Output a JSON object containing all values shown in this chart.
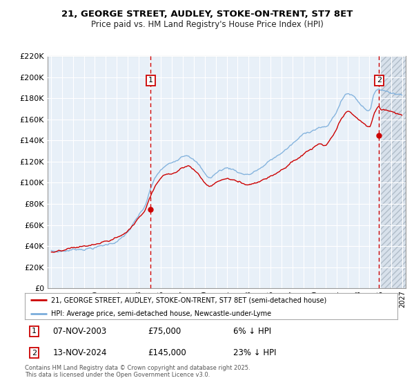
{
  "title": "21, GEORGE STREET, AUDLEY, STOKE-ON-TRENT, ST7 8ET",
  "subtitle": "Price paid vs. HM Land Registry's House Price Index (HPI)",
  "legend_line1": "21, GEORGE STREET, AUDLEY, STOKE-ON-TRENT, ST7 8ET (semi-detached house)",
  "legend_line2": "HPI: Average price, semi-detached house, Newcastle-under-Lyme",
  "annotation1_label": "1",
  "annotation1_date": "07-NOV-2003",
  "annotation1_price": "£75,000",
  "annotation1_hpi": "6% ↓ HPI",
  "annotation2_label": "2",
  "annotation2_date": "13-NOV-2024",
  "annotation2_price": "£145,000",
  "annotation2_hpi": "23% ↓ HPI",
  "footer": "Contains HM Land Registry data © Crown copyright and database right 2025.\nThis data is licensed under the Open Government Licence v3.0.",
  "red_color": "#cc0000",
  "blue_color": "#7aaddb",
  "fig_bg": "#ffffff",
  "plot_bg": "#e8f0f8",
  "grid_color": "#ffffff",
  "future_hatch_color": "#c8d4e0",
  "ylim": [
    0,
    220000
  ],
  "xlim_start": 1994.7,
  "xlim_end": 2027.3,
  "transaction1_x": 2004.08,
  "transaction1_y": 75000,
  "transaction2_x": 2024.88,
  "transaction2_y": 145000,
  "future_start": 2025.0
}
